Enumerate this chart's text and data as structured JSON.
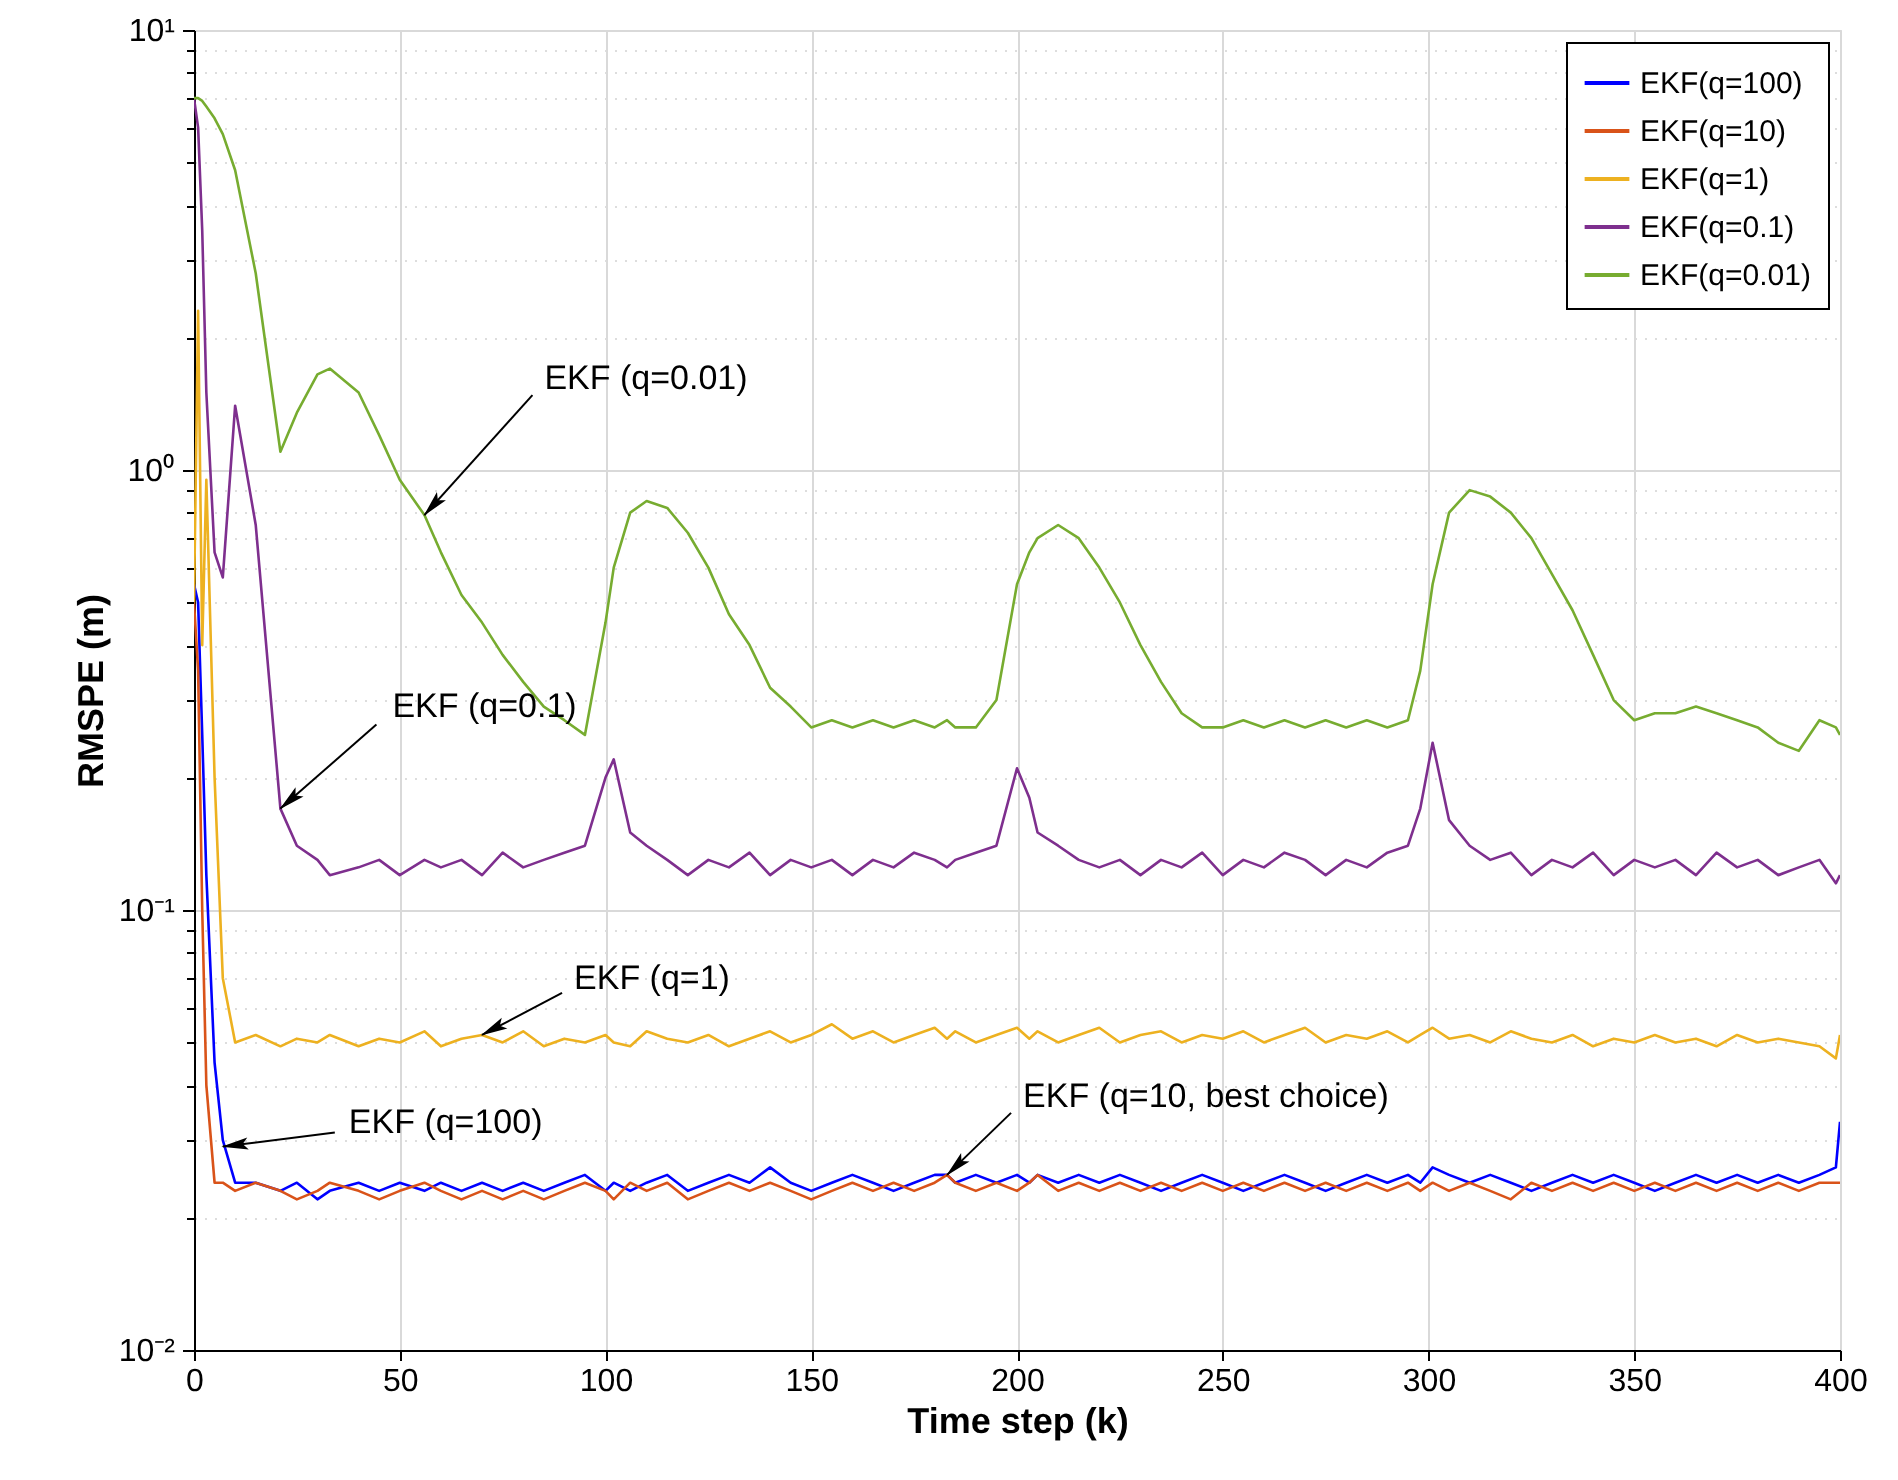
{
  "chart_data": {
    "type": "line",
    "xlabel": "Time step (k)",
    "ylabel": "RMSPE (m)",
    "log": "y",
    "grid": true,
    "legend": "top right",
    "xlim": [
      0,
      400
    ],
    "xticks": [
      0,
      50,
      100,
      150,
      200,
      250,
      300,
      350,
      400
    ],
    "ylim": [
      0.01,
      10
    ],
    "yticks": [
      {
        "value": 0.01,
        "label": "10⁻²"
      },
      {
        "value": 0.02,
        "label": null
      },
      {
        "value": 0.03,
        "label": null
      },
      {
        "value": 0.04,
        "label": null
      },
      {
        "value": 0.05,
        "label": null
      },
      {
        "value": 0.06,
        "label": null
      },
      {
        "value": 0.07,
        "label": null
      },
      {
        "value": 0.08,
        "label": null
      },
      {
        "value": 0.09,
        "label": null
      },
      {
        "value": 0.1,
        "label": "10⁻¹"
      },
      {
        "value": 0.2,
        "label": null
      },
      {
        "value": 0.3,
        "label": null
      },
      {
        "value": 0.4,
        "label": null
      },
      {
        "value": 0.5,
        "label": null
      },
      {
        "value": 0.6,
        "label": null
      },
      {
        "value": 0.7,
        "label": null
      },
      {
        "value": 0.8,
        "label": null
      },
      {
        "value": 0.9,
        "label": null
      },
      {
        "value": 1,
        "label": "10⁰"
      },
      {
        "value": 2,
        "label": null
      },
      {
        "value": 3,
        "label": null
      },
      {
        "value": 4,
        "label": null
      },
      {
        "value": 5,
        "label": null
      },
      {
        "value": 6,
        "label": null
      },
      {
        "value": 7,
        "label": null
      },
      {
        "value": 8,
        "label": null
      },
      {
        "value": 9,
        "label": null
      },
      {
        "value": 10,
        "label": "10¹"
      }
    ],
    "x": [
      0,
      1,
      2,
      3,
      5,
      7,
      10,
      15,
      21,
      25,
      30,
      33,
      40,
      45,
      50,
      56,
      60,
      65,
      70,
      75,
      80,
      85,
      90,
      95,
      100,
      102,
      106,
      110,
      115,
      120,
      125,
      130,
      135,
      140,
      145,
      150,
      155,
      160,
      165,
      170,
      175,
      180,
      183,
      185,
      190,
      195,
      200,
      203,
      205,
      210,
      215,
      220,
      225,
      230,
      235,
      240,
      245,
      250,
      255,
      260,
      265,
      270,
      275,
      280,
      285,
      290,
      295,
      298,
      301,
      305,
      310,
      315,
      320,
      325,
      330,
      335,
      340,
      345,
      350,
      355,
      360,
      365,
      370,
      375,
      380,
      385,
      390,
      395,
      399,
      400
    ],
    "series": [
      {
        "name": "EKF(q=100)",
        "color": "#0000ff",
        "values": [
          0.55,
          0.5,
          0.25,
          0.12,
          0.045,
          0.03,
          0.024,
          0.024,
          0.023,
          0.024,
          0.022,
          0.023,
          0.024,
          0.023,
          0.024,
          0.023,
          0.024,
          0.023,
          0.024,
          0.023,
          0.024,
          0.023,
          0.024,
          0.025,
          0.023,
          0.024,
          0.023,
          0.024,
          0.025,
          0.023,
          0.024,
          0.025,
          0.024,
          0.026,
          0.024,
          0.023,
          0.024,
          0.025,
          0.024,
          0.023,
          0.024,
          0.025,
          0.025,
          0.024,
          0.025,
          0.024,
          0.025,
          0.024,
          0.025,
          0.024,
          0.025,
          0.024,
          0.025,
          0.024,
          0.023,
          0.024,
          0.025,
          0.024,
          0.023,
          0.024,
          0.025,
          0.024,
          0.023,
          0.024,
          0.025,
          0.024,
          0.025,
          0.024,
          0.026,
          0.025,
          0.024,
          0.025,
          0.024,
          0.023,
          0.024,
          0.025,
          0.024,
          0.025,
          0.024,
          0.023,
          0.024,
          0.025,
          0.024,
          0.025,
          0.024,
          0.025,
          0.024,
          0.025,
          0.026,
          0.033
        ]
      },
      {
        "name": "EKF(q=10)",
        "color": "#d95319",
        "values": [
          0.5,
          0.35,
          0.1,
          0.04,
          0.024,
          0.024,
          0.023,
          0.024,
          0.023,
          0.022,
          0.023,
          0.024,
          0.023,
          0.022,
          0.023,
          0.024,
          0.023,
          0.022,
          0.023,
          0.022,
          0.023,
          0.022,
          0.023,
          0.024,
          0.023,
          0.022,
          0.024,
          0.023,
          0.024,
          0.022,
          0.023,
          0.024,
          0.023,
          0.024,
          0.023,
          0.022,
          0.023,
          0.024,
          0.023,
          0.024,
          0.023,
          0.024,
          0.025,
          0.024,
          0.023,
          0.024,
          0.023,
          0.024,
          0.025,
          0.023,
          0.024,
          0.023,
          0.024,
          0.023,
          0.024,
          0.023,
          0.024,
          0.023,
          0.024,
          0.023,
          0.024,
          0.023,
          0.024,
          0.023,
          0.024,
          0.023,
          0.024,
          0.023,
          0.024,
          0.023,
          0.024,
          0.023,
          0.022,
          0.024,
          0.023,
          0.024,
          0.023,
          0.024,
          0.023,
          0.024,
          0.023,
          0.024,
          0.023,
          0.024,
          0.023,
          0.024,
          0.023,
          0.024,
          0.024,
          0.024
        ]
      },
      {
        "name": "EKF(q=1)",
        "color": "#edb120",
        "values": [
          0.5,
          2.3,
          0.4,
          0.95,
          0.2,
          0.07,
          0.05,
          0.052,
          0.049,
          0.051,
          0.05,
          0.052,
          0.049,
          0.051,
          0.05,
          0.053,
          0.049,
          0.051,
          0.052,
          0.05,
          0.053,
          0.049,
          0.051,
          0.05,
          0.052,
          0.05,
          0.049,
          0.053,
          0.051,
          0.05,
          0.052,
          0.049,
          0.051,
          0.053,
          0.05,
          0.052,
          0.055,
          0.051,
          0.053,
          0.05,
          0.052,
          0.054,
          0.051,
          0.053,
          0.05,
          0.052,
          0.054,
          0.051,
          0.053,
          0.05,
          0.052,
          0.054,
          0.05,
          0.052,
          0.053,
          0.05,
          0.052,
          0.051,
          0.053,
          0.05,
          0.052,
          0.054,
          0.05,
          0.052,
          0.051,
          0.053,
          0.05,
          0.052,
          0.054,
          0.051,
          0.052,
          0.05,
          0.053,
          0.051,
          0.05,
          0.052,
          0.049,
          0.051,
          0.05,
          0.052,
          0.05,
          0.051,
          0.049,
          0.052,
          0.05,
          0.051,
          0.05,
          0.049,
          0.046,
          0.052
        ]
      },
      {
        "name": "EKF(q=0.1)",
        "color": "#7e2f8e",
        "values": [
          7.0,
          6.0,
          3.5,
          1.5,
          0.65,
          0.57,
          1.4,
          0.75,
          0.17,
          0.14,
          0.13,
          0.12,
          0.125,
          0.13,
          0.12,
          0.13,
          0.125,
          0.13,
          0.12,
          0.135,
          0.125,
          0.13,
          0.135,
          0.14,
          0.2,
          0.22,
          0.15,
          0.14,
          0.13,
          0.12,
          0.13,
          0.125,
          0.135,
          0.12,
          0.13,
          0.125,
          0.13,
          0.12,
          0.13,
          0.125,
          0.135,
          0.13,
          0.125,
          0.13,
          0.135,
          0.14,
          0.21,
          0.18,
          0.15,
          0.14,
          0.13,
          0.125,
          0.13,
          0.12,
          0.13,
          0.125,
          0.135,
          0.12,
          0.13,
          0.125,
          0.135,
          0.13,
          0.12,
          0.13,
          0.125,
          0.135,
          0.14,
          0.17,
          0.24,
          0.16,
          0.14,
          0.13,
          0.135,
          0.12,
          0.13,
          0.125,
          0.135,
          0.12,
          0.13,
          0.125,
          0.13,
          0.12,
          0.135,
          0.125,
          0.13,
          0.12,
          0.125,
          0.13,
          0.115,
          0.12
        ]
      },
      {
        "name": "EKF(q=0.01)",
        "color": "#77ac30",
        "values": [
          7.0,
          7.0,
          6.9,
          6.7,
          6.3,
          5.8,
          4.8,
          2.8,
          1.1,
          1.35,
          1.65,
          1.7,
          1.5,
          1.2,
          0.95,
          0.79,
          0.65,
          0.52,
          0.45,
          0.38,
          0.33,
          0.29,
          0.27,
          0.25,
          0.45,
          0.6,
          0.8,
          0.85,
          0.82,
          0.72,
          0.6,
          0.47,
          0.4,
          0.32,
          0.29,
          0.26,
          0.27,
          0.26,
          0.27,
          0.26,
          0.27,
          0.26,
          0.27,
          0.26,
          0.26,
          0.3,
          0.55,
          0.65,
          0.7,
          0.75,
          0.7,
          0.6,
          0.5,
          0.4,
          0.33,
          0.28,
          0.26,
          0.26,
          0.27,
          0.26,
          0.27,
          0.26,
          0.27,
          0.26,
          0.27,
          0.26,
          0.27,
          0.35,
          0.55,
          0.8,
          0.9,
          0.87,
          0.8,
          0.7,
          0.58,
          0.48,
          0.38,
          0.3,
          0.27,
          0.28,
          0.28,
          0.29,
          0.28,
          0.27,
          0.26,
          0.24,
          0.23,
          0.27,
          0.26,
          0.25
        ]
      }
    ],
    "annotations": [
      {
        "text": "EKF (q=0.01)",
        "x": 56,
        "y": 0.79
      },
      {
        "text": "EKF (q=0.1)",
        "x": 21,
        "y": 0.17
      },
      {
        "text": "EKF (q=1)",
        "x": 70,
        "y": 0.052
      },
      {
        "text": "EKF (q=100)",
        "x": 7,
        "y": 0.029
      },
      {
        "text": "EKF (q=10, best choice)",
        "x": 183,
        "y": 0.025
      }
    ]
  }
}
